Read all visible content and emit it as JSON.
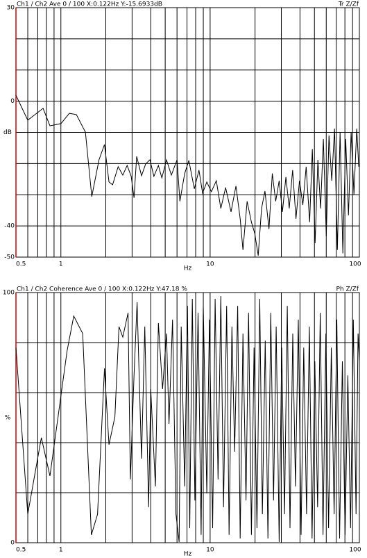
{
  "chart_data": [
    {
      "type": "line",
      "header_left": "Ch1 / Ch2  Ave 0 / 100  X:0.122Hz  Y:-15.6933dB",
      "header_right": "Tr Z/Zf",
      "ylabel": "dB",
      "xlabel": "Hz",
      "log_x": true,
      "color": "#000000",
      "axis_color": "#cc0000",
      "xlim": [
        0.5,
        100
      ],
      "xticks": [
        0.5,
        1,
        10,
        100
      ],
      "xgrid": [
        0.5,
        0.6,
        0.7,
        0.8,
        0.9,
        1,
        2,
        3,
        4,
        5,
        6,
        7,
        8,
        9,
        10,
        20,
        30,
        40,
        50,
        60,
        70,
        80,
        90,
        100
      ],
      "ylim": [
        -50,
        30
      ],
      "yticks": [
        -50,
        -40,
        0,
        30
      ],
      "ygrid": [
        -50,
        -40,
        -30,
        -20,
        -10,
        0,
        10,
        20,
        30
      ],
      "x": [
        0.5,
        0.6,
        0.76,
        0.845,
        1.0,
        1.14,
        1.27,
        1.46,
        1.61,
        1.8,
        1.96,
        2.1,
        2.22,
        2.42,
        2.6,
        2.78,
        2.96,
        3.09,
        3.22,
        3.47,
        3.7,
        3.95,
        4.2,
        4.5,
        4.75,
        5.1,
        5.5,
        6.0,
        6.27,
        6.75,
        7.2,
        7.84,
        8.42,
        8.9,
        9.5,
        10.2,
        11,
        11.8,
        12.7,
        13.8,
        14.9,
        15.9,
        16.6,
        17.7,
        18.9,
        19.9,
        21,
        22.1,
        23.3,
        24.8,
        26.1,
        27.5,
        29,
        30.5,
        32.2,
        33.9,
        35.7,
        37.6,
        39.7,
        41.8,
        44,
        46.4,
        48.4,
        50.5,
        52.7,
        55,
        57.4,
        60,
        62.6,
        65.3,
        68.2,
        71.2,
        74.3,
        77.5,
        81,
        84.5,
        88,
        92,
        96,
        99
      ],
      "values": [
        1.9,
        -6.1,
        -2.3,
        -7.9,
        -7.2,
        -3.9,
        -4.3,
        -9.9,
        -30.6,
        -18.8,
        -13.9,
        -25.9,
        -26.8,
        -21,
        -23.7,
        -20.6,
        -24.1,
        -31,
        -17.7,
        -23.9,
        -20.1,
        -18.8,
        -24.1,
        -20.6,
        -24.6,
        -18.8,
        -23.7,
        -18.8,
        -32.1,
        -23.2,
        -19,
        -28.1,
        -22.1,
        -29.5,
        -25.9,
        -29,
        -25.5,
        -34.4,
        -27.7,
        -35.5,
        -27.2,
        -37.7,
        -47.7,
        -32.1,
        -38.8,
        -42.4,
        -49.5,
        -34.4,
        -28.8,
        -41,
        -23.2,
        -32.1,
        -25.5,
        -35.5,
        -24.3,
        -34.4,
        -22.1,
        -37.7,
        -25.5,
        -33.3,
        -21,
        -38.8,
        -15.4,
        -45.5,
        -18.8,
        -34.4,
        -12.1,
        -43.3,
        -11,
        -25.5,
        -8.8,
        -47.7,
        -9.9,
        -48.8,
        -12.1,
        -36.6,
        -9.9,
        -29.9,
        -8.8,
        -21
      ]
    },
    {
      "type": "line",
      "header_left": "Ch1 / Ch2  Coherence Ave 0 / 100  X:0.122Hz  Y:47.18 %",
      "header_right": "Ph Z/Zf",
      "ylabel": "%",
      "xlabel": "Hz",
      "log_x": true,
      "color": "#000000",
      "axis_color": "#cc0000",
      "xlim": [
        0.5,
        100
      ],
      "xticks": [
        0.5,
        1,
        10,
        100
      ],
      "xgrid": [
        0.5,
        0.6,
        0.7,
        0.8,
        0.9,
        1,
        2,
        3,
        4,
        5,
        6,
        7,
        8,
        9,
        10,
        20,
        30,
        40,
        50,
        60,
        70,
        80,
        90,
        100
      ],
      "ylim": [
        0,
        100
      ],
      "yticks": [
        0,
        100
      ],
      "ygrid": [
        0,
        20,
        40,
        60,
        80,
        100
      ],
      "x": [
        0.5,
        0.6,
        0.74,
        0.845,
        1.1,
        1.22,
        1.4,
        1.6,
        1.76,
        1.96,
        2.1,
        2.3,
        2.45,
        2.6,
        2.82,
        2.92,
        3.09,
        3.24,
        3.47,
        3.65,
        3.87,
        4.0,
        4.3,
        4.5,
        4.8,
        5.1,
        5.3,
        5.6,
        5.9,
        6.2,
        6.4,
        6.75,
        7.05,
        7.3,
        7.6,
        7.9,
        8.3,
        8.7,
        9.0,
        9.5,
        9.9,
        10.4,
        10.8,
        11.3,
        11.8,
        12.3,
        12.9,
        13.4,
        14,
        14.6,
        15.3,
        15.9,
        16.6,
        17.4,
        18.1,
        18.9,
        19.7,
        20.6,
        21.5,
        22.4,
        23.4,
        24.4,
        25.5,
        26.6,
        27.7,
        29,
        30.2,
        31.5,
        32.9,
        34.3,
        35.8,
        37.3,
        39,
        40.7,
        42.4,
        44.3,
        46.2,
        48.2,
        50.3,
        52.5,
        54.7,
        57.1,
        59.6,
        62.2,
        64.9,
        67.7,
        70.6,
        73.7,
        76.9,
        80.2,
        83.7,
        87.3,
        91.1,
        95,
        98,
        100
      ],
      "values": [
        78,
        11.4,
        42,
        26.7,
        76.7,
        90.6,
        83.6,
        3.1,
        11.4,
        69.7,
        39.2,
        50.3,
        86.4,
        82.2,
        91.9,
        25.3,
        66.9,
        96.1,
        33.6,
        86.4,
        14.2,
        61.4,
        22.5,
        87.8,
        61.4,
        83.6,
        47.5,
        89.2,
        11.4,
        0.3,
        86.4,
        22.5,
        94.7,
        5.8,
        97.5,
        16.9,
        91.9,
        3.1,
        94.7,
        19.7,
        89.2,
        5.8,
        97.5,
        25.3,
        98.6,
        14.2,
        94.7,
        3.1,
        86.4,
        36.4,
        94.7,
        1.7,
        83.6,
        16.9,
        91.9,
        3.1,
        78,
        5.8,
        97.5,
        11.4,
        80.8,
        1.7,
        91.9,
        16.9,
        86.4,
        0.3,
        78,
        11.4,
        94.7,
        5.8,
        83.6,
        22.5,
        89.2,
        3.1,
        78,
        11.4,
        86.4,
        1.7,
        72.5,
        14.2,
        91.9,
        3.1,
        83.6,
        5.8,
        78,
        11.4,
        89.2,
        1.7,
        72.5,
        3.1,
        66.9,
        5.8,
        89.2,
        11.4,
        83.6,
        72.5
      ]
    }
  ]
}
